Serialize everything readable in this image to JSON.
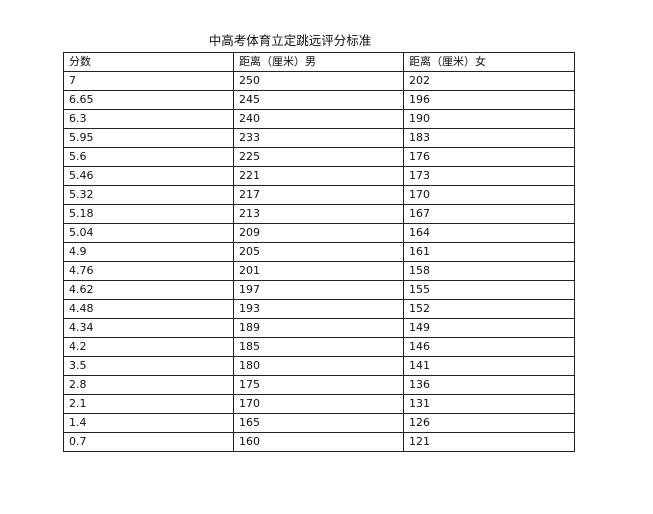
{
  "title": "中高考体育立定跳远评分标准",
  "table": {
    "headers": [
      "分数",
      "距离（厘米）男",
      "距离（厘米）女"
    ],
    "rows": [
      [
        "7",
        "250",
        "202"
      ],
      [
        "6.65",
        "245",
        "196"
      ],
      [
        "6.3",
        "240",
        "190"
      ],
      [
        "5.95",
        "233",
        "183"
      ],
      [
        "5.6",
        "225",
        "176"
      ],
      [
        "5.46",
        "221",
        "173"
      ],
      [
        "5.32",
        "217",
        "170"
      ],
      [
        "5.18",
        "213",
        "167"
      ],
      [
        "5.04",
        "209",
        "164"
      ],
      [
        "4.9",
        "205",
        "161"
      ],
      [
        "4.76",
        "201",
        "158"
      ],
      [
        "4.62",
        "197",
        "155"
      ],
      [
        "4.48",
        "193",
        "152"
      ],
      [
        "4.34",
        "189",
        "149"
      ],
      [
        "4.2",
        "185",
        "146"
      ],
      [
        "3.5",
        "180",
        "141"
      ],
      [
        "2.8",
        "175",
        "136"
      ],
      [
        "2.1",
        "170",
        "131"
      ],
      [
        "1.4",
        "165",
        "126"
      ],
      [
        "0.7",
        "160",
        "121"
      ]
    ]
  }
}
